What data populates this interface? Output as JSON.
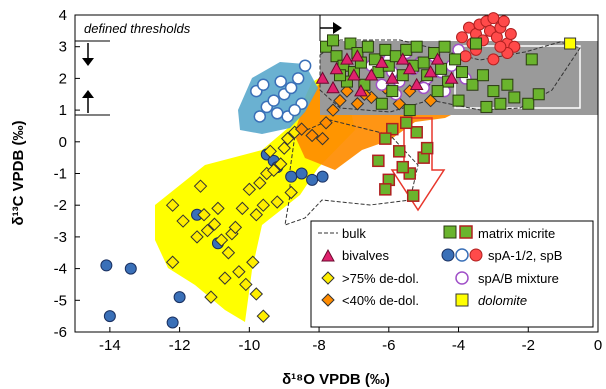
{
  "chart_data": {
    "type": "scatter",
    "xlabel": "δ¹⁸O VPDB (‰)",
    "ylabel": "δ¹³C VPDB (‰)",
    "xlim": [
      -15,
      0
    ],
    "ylim": [
      -6,
      4
    ],
    "xticks": [
      -14,
      -12,
      -10,
      -8,
      -6,
      -4,
      -2,
      0
    ],
    "yticks": [
      -6,
      -5,
      -4,
      -3,
      -2,
      -1,
      0,
      1,
      2,
      3,
      4
    ],
    "grid": false,
    "legend_position": "bottom-right",
    "annotations": {
      "thresholds_label": "defined thresholds"
    },
    "threshold_values": {
      "upper_d13C": 3.2,
      "lower_d13C": 0.9,
      "d18O": -8.0
    },
    "legend": [
      {
        "label": "bulk",
        "marker": "dashed-line"
      },
      {
        "label": "matrix micrite",
        "marker": "square-green"
      },
      {
        "label": "bivalves",
        "marker": "triangle-pink"
      },
      {
        "label": "spA-1/2, spB",
        "marker": "circles-blue-white-red"
      },
      {
        "label": ">75% de-dol.",
        "marker": "diamond-yellow"
      },
      {
        "label": "spA/B mixture",
        "marker": "circle-purple"
      },
      {
        "label": "<40% de-dol.",
        "marker": "diamond-orange"
      },
      {
        "label": "dolomite",
        "marker": "square-yellow",
        "italic": true
      }
    ],
    "colors": {
      "grey_field": "#9a9a9a",
      "blue_field": "#5aa9cc",
      "yellow_field": "#ffff00",
      "orange_field": "#ff8c00",
      "red_outline": "#e8372c",
      "blue_marker": "#3a70b8",
      "green_marker": "#6ab42d",
      "red_marker": "#ff4a4a",
      "purple_marker": "#a050c8",
      "pink_marker": "#e0226e",
      "yellow_marker": "#ffee00",
      "dolomite_marker": "#ffff00"
    },
    "series": [
      {
        "key": "blue-solid",
        "marker": "circle",
        "points": [
          [
            -14.1,
            -3.9
          ],
          [
            -14.0,
            -5.5
          ],
          [
            -13.4,
            -4.0
          ],
          [
            -12.2,
            -5.7
          ],
          [
            -12.0,
            -4.9
          ],
          [
            -11.5,
            -2.3
          ],
          [
            -10.9,
            -3.2
          ],
          [
            -9.5,
            -0.4
          ],
          [
            -9.3,
            -0.6
          ],
          [
            -9.2,
            -0.8
          ],
          [
            -8.8,
            -1.1
          ],
          [
            -8.5,
            -1.0
          ],
          [
            -8.2,
            -1.2
          ],
          [
            -7.9,
            -1.1
          ]
        ]
      },
      {
        "key": "blue-open",
        "marker": "circle",
        "points": [
          [
            -9.8,
            1.6
          ],
          [
            -9.6,
            1.8
          ],
          [
            -9.5,
            1.1
          ],
          [
            -9.3,
            1.3
          ],
          [
            -9.1,
            1.9
          ],
          [
            -9.0,
            1.5
          ],
          [
            -8.9,
            0.8
          ],
          [
            -8.8,
            1.7
          ],
          [
            -8.6,
            2.0
          ],
          [
            -8.5,
            1.2
          ],
          [
            -8.4,
            2.4
          ],
          [
            -9.7,
            0.8
          ],
          [
            -9.2,
            0.9
          ],
          [
            -8.7,
            1.0
          ]
        ]
      },
      {
        "key": "yellow-diamond",
        "marker": "diamond",
        "points": [
          [
            -12.2,
            -2.0
          ],
          [
            -11.9,
            -2.5
          ],
          [
            -12.2,
            -3.8
          ],
          [
            -11.5,
            -3.0
          ],
          [
            -11.2,
            -2.8
          ],
          [
            -11.0,
            -2.6
          ],
          [
            -11.3,
            -2.3
          ],
          [
            -10.9,
            -2.1
          ],
          [
            -10.8,
            -3.1
          ],
          [
            -10.5,
            -2.9
          ],
          [
            -10.4,
            -2.7
          ],
          [
            -10.2,
            -2.1
          ],
          [
            -10.6,
            -3.5
          ],
          [
            -10.3,
            -4.1
          ],
          [
            -10.1,
            -4.5
          ],
          [
            -9.8,
            -4.8
          ],
          [
            -9.6,
            -5.5
          ],
          [
            -11.1,
            -4.9
          ],
          [
            -10.7,
            -4.3
          ],
          [
            -9.9,
            -3.8
          ],
          [
            -10.0,
            -1.5
          ],
          [
            -9.7,
            -1.3
          ],
          [
            -9.5,
            -1.0
          ],
          [
            -9.3,
            -0.9
          ],
          [
            -9.1,
            -0.7
          ],
          [
            -9.4,
            -0.3
          ],
          [
            -9.0,
            -0.2
          ],
          [
            -8.9,
            0.1
          ],
          [
            -8.7,
            0.3
          ],
          [
            -9.2,
            -1.9
          ],
          [
            -8.8,
            -1.6
          ],
          [
            -9.6,
            -2.0
          ],
          [
            -9.8,
            -2.3
          ],
          [
            -11.4,
            -1.4
          ]
        ]
      },
      {
        "key": "orange-diamond",
        "marker": "diamond",
        "points": [
          [
            -8.5,
            0.4
          ],
          [
            -8.2,
            0.2
          ],
          [
            -7.9,
            0.1
          ],
          [
            -7.6,
            1.0
          ],
          [
            -7.4,
            1.3
          ],
          [
            -7.2,
            1.6
          ],
          [
            -6.9,
            1.2
          ],
          [
            -6.5,
            1.4
          ],
          [
            -6.1,
            1.7
          ],
          [
            -5.7,
            1.2
          ],
          [
            -5.4,
            1.6
          ],
          [
            -5.0,
            1.8
          ],
          [
            -4.8,
            1.3
          ],
          [
            -7.8,
            0.6
          ],
          [
            -6.7,
            1.5
          ]
        ]
      },
      {
        "key": "purple-open",
        "marker": "circle",
        "points": [
          [
            -6.5,
            2.4
          ],
          [
            -6.2,
            1.8
          ],
          [
            -6.0,
            2.6
          ],
          [
            -5.9,
            2.2
          ],
          [
            -5.7,
            1.9
          ],
          [
            -5.5,
            2.8
          ],
          [
            -5.3,
            2.3
          ],
          [
            -5.1,
            2.5
          ],
          [
            -4.9,
            2.0
          ],
          [
            -4.7,
            2.7
          ],
          [
            -4.5,
            2.2
          ],
          [
            -4.4,
            1.6
          ],
          [
            -4.2,
            2.4
          ],
          [
            -4.0,
            2.9
          ],
          [
            -3.8,
            2.0
          ],
          [
            -5.8,
            1.5
          ],
          [
            -5.0,
            1.7
          ]
        ]
      },
      {
        "key": "red-open",
        "marker": "circle",
        "points": [
          [
            -3.9,
            3.3
          ],
          [
            -3.7,
            3.6
          ],
          [
            -3.6,
            3.1
          ],
          [
            -3.5,
            3.4
          ],
          [
            -3.4,
            3.7
          ],
          [
            -3.3,
            3.2
          ],
          [
            -3.2,
            3.8
          ],
          [
            -3.1,
            3.5
          ],
          [
            -3.0,
            3.9
          ],
          [
            -2.9,
            3.3
          ],
          [
            -2.8,
            3.6
          ],
          [
            -2.7,
            3.8
          ],
          [
            -2.6,
            3.1
          ],
          [
            -2.5,
            3.4
          ],
          [
            -2.4,
            3.0
          ],
          [
            -3.8,
            2.7
          ],
          [
            -3.0,
            2.6
          ],
          [
            -2.6,
            2.8
          ],
          [
            -3.5,
            2.9
          ],
          [
            -2.8,
            3.0
          ]
        ]
      },
      {
        "key": "green-square",
        "marker": "square",
        "points": [
          [
            -7.8,
            3.0
          ],
          [
            -7.6,
            3.2
          ],
          [
            -7.5,
            2.7
          ],
          [
            -7.3,
            2.4
          ],
          [
            -7.1,
            3.1
          ],
          [
            -7.0,
            2.2
          ],
          [
            -6.9,
            2.8
          ],
          [
            -6.8,
            2.5
          ],
          [
            -6.6,
            3.0
          ],
          [
            -6.4,
            2.6
          ],
          [
            -6.3,
            2.2
          ],
          [
            -6.1,
            2.9
          ],
          [
            -6.0,
            2.4
          ],
          [
            -5.8,
            2.7
          ],
          [
            -5.6,
            2.1
          ],
          [
            -5.5,
            2.9
          ],
          [
            -5.3,
            2.4
          ],
          [
            -5.2,
            3.0
          ],
          [
            -5.0,
            2.5
          ],
          [
            -4.9,
            2.1
          ],
          [
            -4.7,
            2.8
          ],
          [
            -4.5,
            2.3
          ],
          [
            -4.3,
            1.9
          ],
          [
            -4.1,
            2.6
          ],
          [
            -3.9,
            2.2
          ],
          [
            -3.6,
            1.8
          ],
          [
            -3.3,
            2.1
          ],
          [
            -3.0,
            1.6
          ],
          [
            -2.8,
            1.2
          ],
          [
            -2.6,
            1.8
          ],
          [
            -2.4,
            1.4
          ],
          [
            -2.0,
            1.2
          ],
          [
            -1.9,
            2.6
          ],
          [
            -1.7,
            1.5
          ],
          [
            -3.5,
            3.1
          ],
          [
            -4.4,
            3.0
          ],
          [
            -6.7,
            1.8
          ],
          [
            -7.2,
            1.9
          ],
          [
            -5.9,
            1.6
          ],
          [
            -4.0,
            1.3
          ],
          [
            -5.4,
            1.0
          ],
          [
            -6.2,
            1.2
          ],
          [
            -3.2,
            1.1
          ],
          [
            -4.6,
            1.6
          ],
          [
            -7.4,
            2.1
          ]
        ]
      },
      {
        "key": "red-square",
        "marker": "square",
        "points": [
          [
            -5.9,
            0.4
          ],
          [
            -6.1,
            0.1
          ],
          [
            -5.2,
            0.3
          ],
          [
            -5.7,
            -0.3
          ],
          [
            -5.0,
            -0.5
          ],
          [
            -5.4,
            -1.0
          ],
          [
            -6.0,
            -1.2
          ],
          [
            -6.1,
            -1.5
          ],
          [
            -5.3,
            -1.7
          ],
          [
            -5.6,
            -0.8
          ],
          [
            -4.9,
            -0.2
          ],
          [
            -5.5,
            0.6
          ],
          [
            -6.3,
            -0.6
          ]
        ]
      },
      {
        "key": "pink-triangle",
        "marker": "triangle",
        "points": [
          [
            -7.9,
            2.0
          ],
          [
            -7.6,
            1.7
          ],
          [
            -7.2,
            2.6
          ],
          [
            -7.0,
            2.1
          ],
          [
            -6.8,
            1.6
          ],
          [
            -6.5,
            2.1
          ],
          [
            -6.2,
            2.5
          ],
          [
            -5.9,
            2.0
          ],
          [
            -5.6,
            2.6
          ],
          [
            -5.4,
            2.3
          ],
          [
            -5.2,
            1.8
          ],
          [
            -4.8,
            2.2
          ],
          [
            -4.6,
            2.6
          ],
          [
            -4.2,
            2.0
          ],
          [
            -6.9,
            2.7
          ],
          [
            -7.5,
            2.3
          ]
        ]
      },
      {
        "key": "dolomite-square",
        "marker": "square",
        "points": [
          [
            -0.8,
            3.1
          ]
        ]
      }
    ]
  }
}
